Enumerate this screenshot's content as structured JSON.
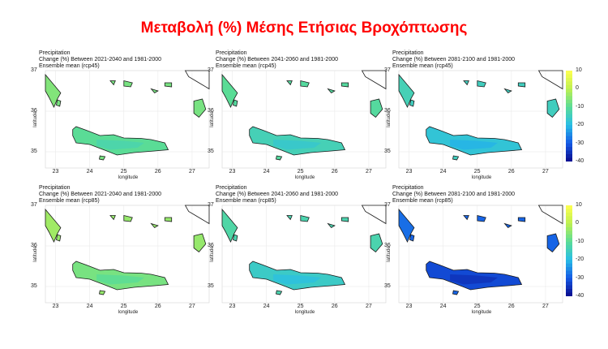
{
  "page_title": "Μεταβολή (%) Μέσης Ετήσιας Βροχόπτωσης",
  "colors": {
    "title": "#ff0000"
  },
  "chart_data": [
    {
      "type": "heatmap",
      "title_lines": [
        "Precipitation",
        "Change (%) Between 2021-2040 and 1981-2000",
        "Ensemble mean (rcp45)"
      ],
      "xlabel": "longitude",
      "ylabel": "latitude",
      "xticks": [
        "23",
        "24",
        "25",
        "26",
        "27"
      ],
      "yticks": [
        "37",
        "36",
        "35"
      ],
      "xlim": [
        22.7,
        27.5
      ],
      "ylim": [
        34.6,
        37.0
      ],
      "mean_change_percent": -8
    },
    {
      "type": "heatmap",
      "title_lines": [
        "Precipitation",
        "Change (%) Between 2041-2060 and 1981-2000",
        "Ensemble mean (rcp45)"
      ],
      "xlabel": "longitude",
      "ylabel": "latitude",
      "xticks": [
        "23",
        "24",
        "25",
        "26",
        "27"
      ],
      "yticks": [
        "37",
        "36",
        "35"
      ],
      "xlim": [
        22.7,
        27.5
      ],
      "ylim": [
        34.6,
        37.0
      ],
      "mean_change_percent": -12
    },
    {
      "type": "heatmap",
      "title_lines": [
        "Precipitation",
        "Change (%) Between 2081-2100 and 1981-2000",
        "Ensemble mean (rcp45)"
      ],
      "xlabel": "longitude",
      "ylabel": "latitude",
      "xticks": [
        "23",
        "24",
        "25",
        "26",
        "27"
      ],
      "yticks": [
        "37",
        "36",
        "35"
      ],
      "xlim": [
        22.7,
        27.5
      ],
      "ylim": [
        34.6,
        37.0
      ],
      "mean_change_percent": -16,
      "colorbar": {
        "ticks": [
          "10",
          "0",
          "-10",
          "-20",
          "-30",
          "-40"
        ],
        "range": [
          -40,
          10
        ]
      }
    },
    {
      "type": "heatmap",
      "title_lines": [
        "Precipitation",
        "Change (%) Between 2021-2040 and 1981-2000",
        "Ensemble mean (rcp85)"
      ],
      "xlabel": "longitude",
      "ylabel": "latitude",
      "xticks": [
        "23",
        "24",
        "25",
        "26",
        "27"
      ],
      "yticks": [
        "37",
        "36",
        "35"
      ],
      "xlim": [
        22.7,
        27.5
      ],
      "ylim": [
        34.6,
        37.0
      ],
      "mean_change_percent": -5
    },
    {
      "type": "heatmap",
      "title_lines": [
        "Precipitation",
        "Change (%) Between 2041-2060 and 1981-2000",
        "Ensemble mean (rcp85)"
      ],
      "xlabel": "longitude",
      "ylabel": "latitude",
      "xticks": [
        "23",
        "24",
        "25",
        "26",
        "27"
      ],
      "yticks": [
        "37",
        "36",
        "35"
      ],
      "xlim": [
        22.7,
        27.5
      ],
      "ylim": [
        34.6,
        37.0
      ],
      "mean_change_percent": -14
    },
    {
      "type": "heatmap",
      "title_lines": [
        "Precipitation",
        "Change (%) Between 2081-2100 and 1981-2000",
        "Ensemble mean (rcp85)"
      ],
      "xlabel": "longitude",
      "ylabel": "latitude",
      "xticks": [
        "23",
        "24",
        "25",
        "26",
        "27"
      ],
      "yticks": [
        "37",
        "36",
        "35"
      ],
      "xlim": [
        22.7,
        27.5
      ],
      "ylim": [
        34.6,
        37.0
      ],
      "mean_change_percent": -30,
      "colorbar": {
        "ticks": [
          "10",
          "0",
          "-10",
          "-20",
          "-30",
          "-40"
        ],
        "range": [
          -40,
          10
        ]
      }
    }
  ]
}
